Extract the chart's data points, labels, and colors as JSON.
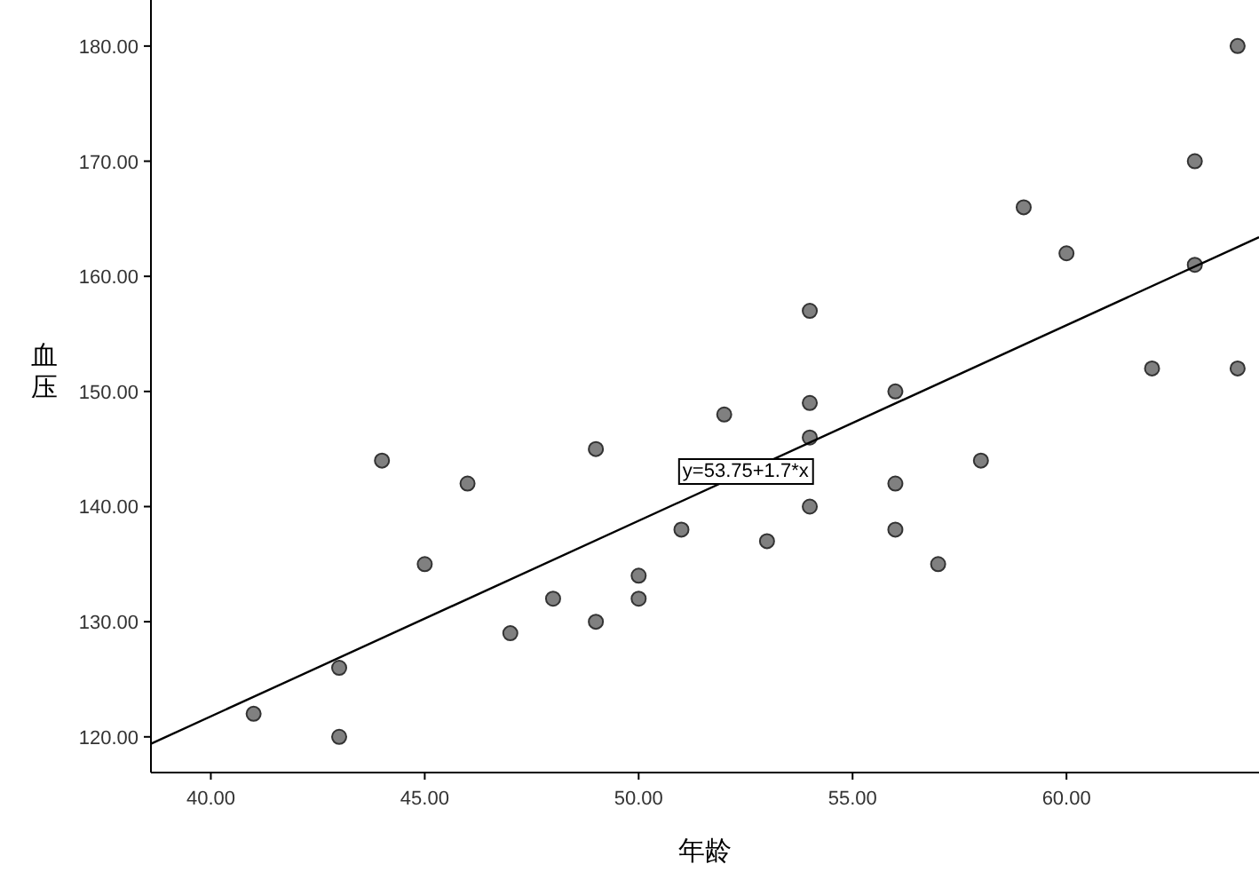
{
  "chart_data": {
    "type": "scatter",
    "xlabel": "年龄",
    "ylabel": "血压",
    "x": [
      41,
      43,
      43,
      44,
      45,
      46,
      47,
      48,
      49,
      49,
      50,
      50,
      51,
      52,
      53,
      54,
      54,
      54,
      54,
      56,
      56,
      56,
      57,
      58,
      59,
      60,
      62,
      63,
      63,
      64,
      64
    ],
    "series": [
      {
        "marker": "circle",
        "color": "#808080",
        "values": [
          122,
          126,
          120,
          144,
          135,
          142,
          129,
          132,
          130,
          145,
          134,
          132,
          138,
          148,
          137,
          157,
          149,
          146,
          140,
          150,
          142,
          138,
          135,
          144,
          166,
          162,
          152,
          170,
          161,
          180,
          152
        ]
      },
      {
        "type": "line",
        "marker": "none",
        "color": "#000000",
        "x": [
          38.6,
          64.5
        ],
        "values": [
          119.4,
          163.4
        ]
      }
    ],
    "xlim": [
      38.6,
      64.5
    ],
    "ylim": [
      116.9,
      184
    ],
    "xticks": [
      {
        "value": 40,
        "label": "40.00"
      },
      {
        "value": 45,
        "label": "45.00"
      },
      {
        "value": 50,
        "label": "50.00"
      },
      {
        "value": 55,
        "label": "55.00"
      },
      {
        "value": 60,
        "label": "60.00"
      }
    ],
    "yticks": [
      {
        "value": 120,
        "label": "120.00"
      },
      {
        "value": 130,
        "label": "130.00"
      },
      {
        "value": 140,
        "label": "140.00"
      },
      {
        "value": 150,
        "label": "150.00"
      },
      {
        "value": 160,
        "label": "160.00"
      },
      {
        "value": 170,
        "label": "170.00"
      },
      {
        "value": 180,
        "label": "180.00"
      }
    ],
    "annotations": [
      {
        "text": "y=53.75+1.7*x",
        "x": 52.5,
        "y": 143.2
      }
    ]
  }
}
